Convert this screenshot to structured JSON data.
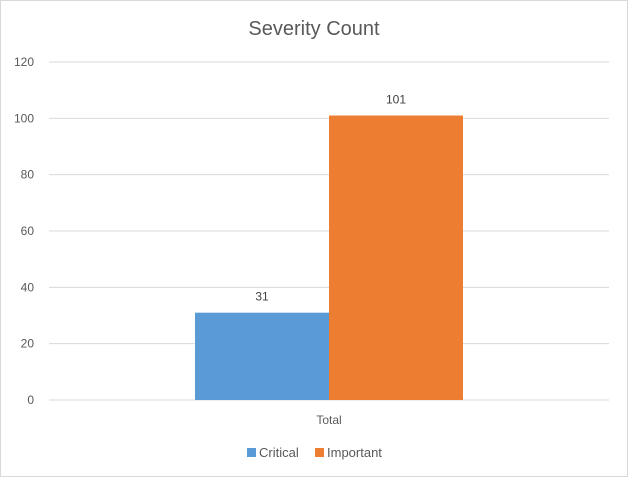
{
  "chart_data": {
    "type": "bar",
    "title": "Severity Count",
    "xlabel": "",
    "ylabel": "",
    "categories": [
      "Total"
    ],
    "series": [
      {
        "name": "Critical",
        "values": [
          31
        ],
        "color": "#5b9bd5"
      },
      {
        "name": "Important",
        "values": [
          101
        ],
        "color": "#ed7d31"
      }
    ],
    "ylim": [
      0,
      120
    ],
    "yticks": [
      0,
      20,
      40,
      60,
      80,
      100,
      120
    ],
    "grid": true,
    "legend_position": "bottom",
    "data_labels": true,
    "gridline_color": "#d9d9d9"
  }
}
